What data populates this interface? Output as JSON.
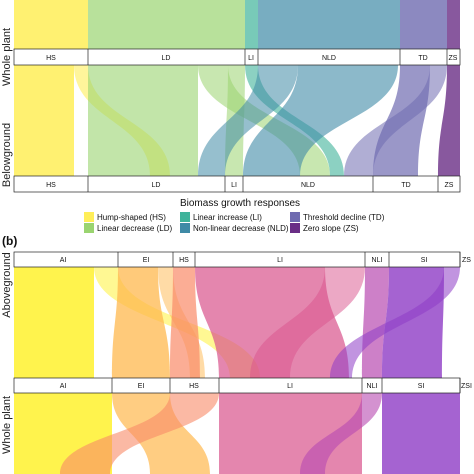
{
  "panel_a": {
    "top_label": "Whole plant",
    "bottom_label": "Belowground",
    "top_bar": [
      "HS",
      "LD",
      "LI",
      "NLD",
      "TD",
      "ZS"
    ],
    "bottom_bar": [
      "HS",
      "LD",
      "LI",
      "NLD",
      "TD",
      "ZS"
    ],
    "axis_title": "Biomass growth responses"
  },
  "legend": [
    {
      "label": "Hump-shaped (HS)",
      "color": "#ffee58"
    },
    {
      "label": "Linear decrease (LD)",
      "color": "#9ad470"
    },
    {
      "label": "Linear increase (LI)",
      "color": "#3fb39a"
    },
    {
      "label": "Non-linear decrease (NLD)",
      "color": "#3f8aa6"
    },
    {
      "label": "Threshold decline (TD)",
      "color": "#6f6bb0"
    },
    {
      "label": "Zero slope (ZS)",
      "color": "#6a2e86"
    }
  ],
  "panel_b": {
    "panel_label": "(b)",
    "top_label": "Aboveground",
    "bottom_label": "Whole plant",
    "top_bar": [
      "AI",
      "EI",
      "HS",
      "LI",
      "NLI",
      "SI",
      "ZS"
    ],
    "bottom_bar": [
      "AI",
      "EI",
      "HS",
      "LI",
      "NLI",
      "SI",
      "ZSI"
    ]
  },
  "colors": {
    "AI": "#fff23a",
    "EI": "#ffb84d",
    "HS": "#f98a68",
    "LI": "#d9528c",
    "NLI": "#b84ab0",
    "SI": "#8e3cc6",
    "ZS": "#6b2fa8"
  }
}
